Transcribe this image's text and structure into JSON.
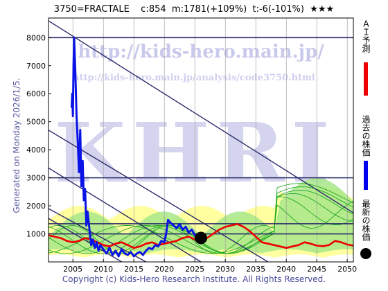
{
  "header": {
    "title": "3750=FRACTALE    c:854  m:1781(+109%)  t:-6(-101%)  ★★★"
  },
  "generated_text": "Generated on Monday 2026/1/5.",
  "copyright": "Copyright (c) Kids-Hero Research Institute. All Rights Reserved.",
  "watermark": {
    "url": "http://kids-hero.main.jp/",
    "sub_url": "http://kids-hero.main.jp/analysis/code3750.html",
    "logo": "KHRI"
  },
  "legend": [
    {
      "label": "ＡＩ予測",
      "color": "#ee0000",
      "icon": "red-line"
    },
    {
      "label": "過去の株価",
      "color": "#0000ee",
      "icon": "blue-line"
    },
    {
      "label": "最新の株価",
      "color": "#000000",
      "icon": "black-dot"
    }
  ],
  "colors": {
    "history": "#0a14e6",
    "forecast": "#ee0000",
    "band_green": "#22aa22",
    "band_fill_yellow": "#ffffa0",
    "band_fill_green": "#a8e68a",
    "trend_lines": "#2a2a6a"
  },
  "chart_data": {
    "type": "line",
    "xlim": [
      2001,
      2051
    ],
    "ylim": [
      0,
      8700
    ],
    "x_ticks": [
      2005,
      2010,
      2015,
      2020,
      2025,
      2030,
      2035,
      2040,
      2045,
      2050
    ],
    "y_ticks": [
      1000,
      2000,
      3000,
      4000,
      5000,
      6000,
      7000,
      8000
    ],
    "grid": "vertical",
    "horizontal_levels": [
      8000,
      3000,
      1360,
      1000
    ],
    "latest": {
      "x": 2026.0,
      "y": 854
    },
    "series": [
      {
        "name": "過去の株価",
        "x": [
          2004.8,
          2004.9,
          2005.0,
          2005.1,
          2005.2,
          2005.4,
          2005.6,
          2005.8,
          2006.0,
          2006.2,
          2006.4,
          2006.6,
          2006.8,
          2007.0,
          2007.2,
          2007.4,
          2007.6,
          2007.8,
          2008.0,
          2008.3,
          2008.6,
          2008.9,
          2009.2,
          2009.5,
          2010.0,
          2010.5,
          2011.0,
          2011.5,
          2012.0,
          2012.5,
          2013.0,
          2013.5,
          2014.0,
          2014.5,
          2015.0,
          2015.5,
          2016.0,
          2016.5,
          2017.0,
          2017.5,
          2018.0,
          2018.5,
          2019.0,
          2019.5,
          2020.0,
          2020.3,
          2020.6,
          2021.0,
          2021.5,
          2022.0,
          2022.5,
          2023.0,
          2023.5,
          2024.0,
          2024.5,
          2025.0,
          2025.5,
          2026.0
        ],
        "y": [
          5500,
          6000,
          5200,
          7000,
          8000,
          6800,
          5200,
          4300,
          3200,
          4700,
          2700,
          3600,
          2200,
          2600,
          1300,
          1800,
          1400,
          1000,
          600,
          800,
          500,
          700,
          400,
          600,
          450,
          300,
          500,
          250,
          400,
          200,
          450,
          300,
          250,
          350,
          200,
          300,
          350,
          250,
          400,
          500,
          450,
          600,
          550,
          750,
          700,
          1000,
          1500,
          1400,
          1300,
          1200,
          1350,
          1150,
          1250,
          1050,
          1150,
          950,
          900,
          854
        ]
      },
      {
        "name": "ＡＩ予測",
        "x": [
          2001,
          2002,
          2003,
          2004,
          2005,
          2006,
          2007,
          2008,
          2009,
          2010,
          2011,
          2012,
          2013,
          2014,
          2015,
          2016,
          2017,
          2018,
          2019,
          2020,
          2021,
          2022,
          2023,
          2024,
          2025,
          2026,
          2027,
          2028,
          2029,
          2030,
          2031,
          2032,
          2033,
          2034,
          2035,
          2036,
          2037,
          2038,
          2039,
          2040,
          2041,
          2042,
          2043,
          2044,
          2045,
          2046,
          2047,
          2048,
          2049,
          2050,
          2051
        ],
        "y": [
          950,
          900,
          850,
          750,
          700,
          750,
          850,
          800,
          700,
          600,
          550,
          650,
          700,
          600,
          500,
          550,
          650,
          700,
          600,
          650,
          700,
          750,
          850,
          900,
          800,
          720,
          850,
          1000,
          1150,
          1250,
          1300,
          1350,
          1250,
          1100,
          900,
          700,
          650,
          600,
          550,
          500,
          550,
          600,
          700,
          650,
          580,
          560,
          600,
          750,
          700,
          620,
          580
        ]
      }
    ]
  }
}
